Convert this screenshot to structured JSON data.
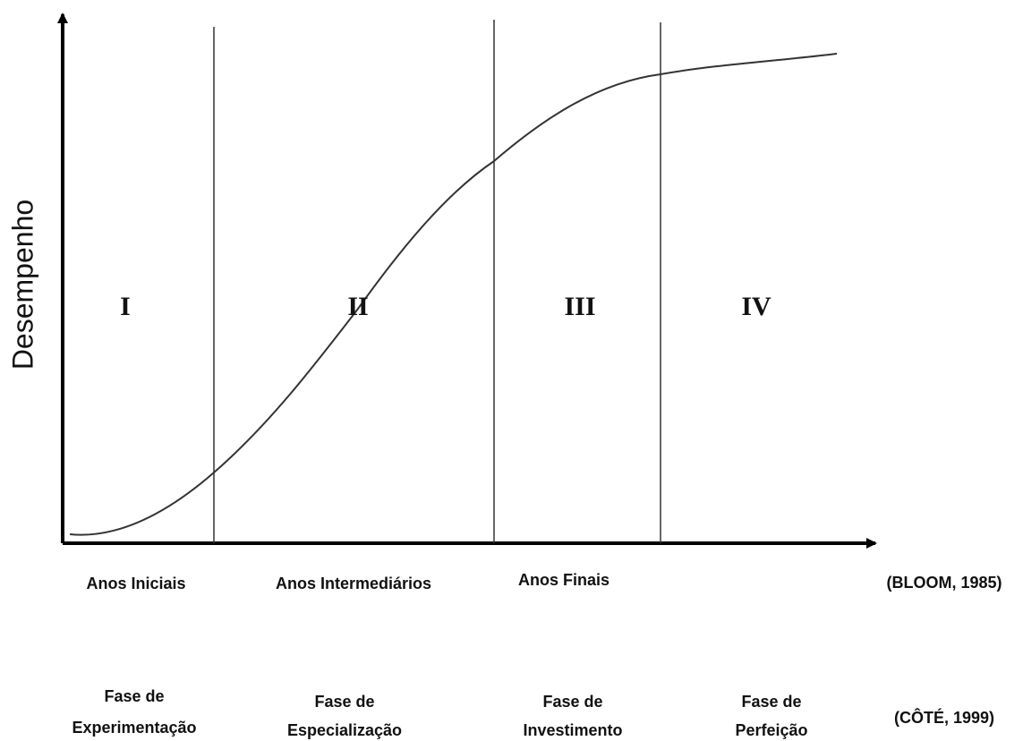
{
  "y_axis_label": "Desempenho",
  "phases": [
    {
      "numeral": "I",
      "cote_label": [
        "Fase de",
        "Experimentação"
      ]
    },
    {
      "numeral": "II",
      "cote_label": [
        "Fase de",
        "Especialização"
      ]
    },
    {
      "numeral": "III",
      "cote_label": [
        "Fase de",
        "Investimento"
      ]
    },
    {
      "numeral": "IV",
      "cote_label": [
        "Fase de",
        "Perfeição"
      ]
    }
  ],
  "bloom": {
    "labels": [
      "Anos Iniciais",
      "Anos Intermediários",
      "Anos Finais"
    ],
    "citation": "(BLOOM, 1985)"
  },
  "cote": {
    "citation": "(CÔTÉ, 1999)"
  }
}
